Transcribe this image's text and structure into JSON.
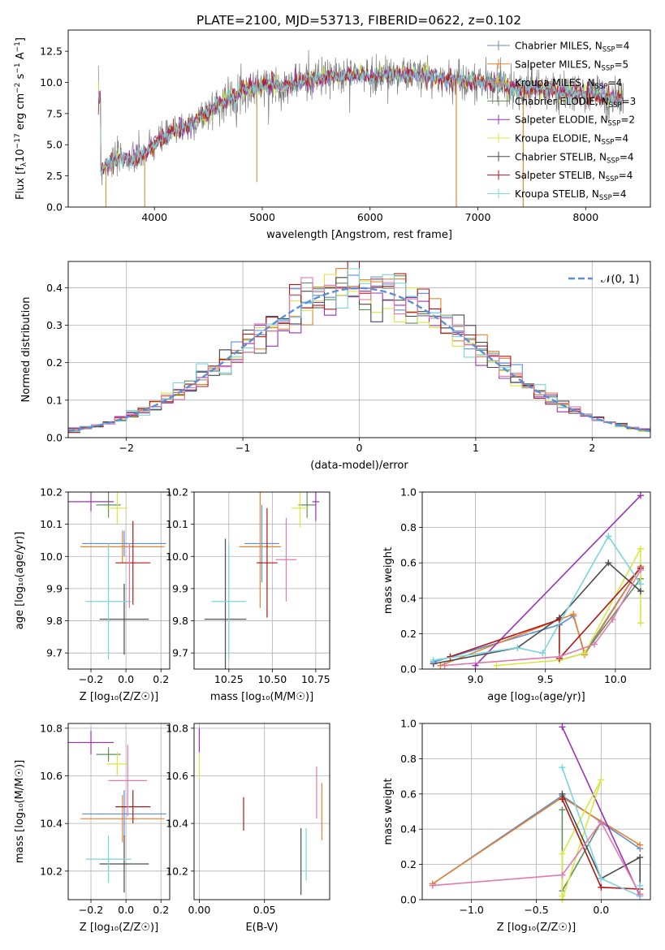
{
  "title": "PLATE=2100, MJD=53713, FIBERID=0622, z=0.102",
  "colors": {
    "Chabrier MILES": "#5a8fd6",
    "Salpeter MILES": "#e8822e",
    "Kroupa MILES": "#e09a3a",
    "Chabrier ELODIE": "#5e8f5e",
    "Salpeter ELODIE": "#9b30b8",
    "Kroupa ELODIE": "#d8e840",
    "Chabrier STELIB": "#4a4a4a",
    "Salpeter STELIB": "#b01818",
    "Kroupa STELIB": "#7ad4dc",
    "pink": "#e07ab0",
    "normal": "#5b8ed6"
  },
  "legend_spectrum": [
    {
      "model": "Chabrier MILES",
      "pre": "Chabrier MILES, N",
      "sub": "SSP",
      "post": "=4"
    },
    {
      "model": "Salpeter MILES",
      "pre": "Salpeter MILES, N",
      "sub": "SSP",
      "post": "=5"
    },
    {
      "model": "Kroupa MILES",
      "pre": "Kroupa MILES, N",
      "sub": "SSP",
      "post": "=4"
    },
    {
      "model": "Chabrier ELODIE",
      "pre": "Chabrier ELODIE, N",
      "sub": "SSP",
      "post": "=3"
    },
    {
      "model": "Salpeter ELODIE",
      "pre": "Salpeter ELODIE, N",
      "sub": "SSP",
      "post": "=2"
    },
    {
      "model": "Kroupa ELODIE",
      "pre": "Kroupa ELODIE, N",
      "sub": "SSP",
      "post": "=4"
    },
    {
      "model": "Chabrier STELIB",
      "pre": "Chabrier STELIB, N",
      "sub": "SSP",
      "post": "=4"
    },
    {
      "model": "Salpeter STELIB",
      "pre": "Salpeter STELIB, N",
      "sub": "SSP",
      "post": "=4"
    },
    {
      "model": "Kroupa STELIB",
      "pre": "Kroupa STELIB, N",
      "sub": "SSP",
      "post": "=4"
    }
  ],
  "chart_data": [
    {
      "id": "spectrum",
      "type": "line",
      "xlabel": "wavelength [Angstrom, rest frame]",
      "ylabel_pre": "Flux [f",
      "ylabel_sub": "λ",
      "ylabel_mid": "10",
      "ylabel_sup1": "−17",
      "ylabel_post": " erg cm",
      "ylabel_sup2": "−2",
      "ylabel_post2": " s",
      "ylabel_sup3": "−1",
      "ylabel_post3": " A",
      "ylabel_sup4": "−1",
      "ylabel_end": "]",
      "xlim": [
        3200,
        8600
      ],
      "ylim": [
        0,
        14.2
      ],
      "xticks": [
        4000,
        5000,
        6000,
        7000,
        8000
      ],
      "yticks": [
        0.0,
        2.5,
        5.0,
        7.5,
        10.0,
        12.5
      ],
      "continuum": [
        [
          3500,
          3.0
        ],
        [
          3600,
          3.6
        ],
        [
          3700,
          4.0
        ],
        [
          3800,
          3.8
        ],
        [
          3900,
          4.2
        ],
        [
          4000,
          5.0
        ],
        [
          4100,
          5.6
        ],
        [
          4200,
          6.2
        ],
        [
          4300,
          6.4
        ],
        [
          4400,
          7.0
        ],
        [
          4500,
          7.7
        ],
        [
          4600,
          8.3
        ],
        [
          4700,
          8.7
        ],
        [
          4800,
          9.2
        ],
        [
          4900,
          9.6
        ],
        [
          5000,
          9.7
        ],
        [
          5100,
          9.9
        ],
        [
          5200,
          9.6
        ],
        [
          5300,
          10.0
        ],
        [
          5400,
          10.2
        ],
        [
          5500,
          10.3
        ],
        [
          5600,
          10.4
        ],
        [
          5700,
          10.5
        ],
        [
          5800,
          10.6
        ],
        [
          5900,
          10.6
        ],
        [
          6000,
          10.5
        ],
        [
          6100,
          10.6
        ],
        [
          6200,
          10.7
        ],
        [
          6300,
          10.6
        ],
        [
          6400,
          10.7
        ],
        [
          6500,
          10.6
        ],
        [
          6600,
          10.4
        ],
        [
          6700,
          10.2
        ],
        [
          6800,
          10.2
        ],
        [
          6900,
          10.1
        ],
        [
          7000,
          10.0
        ],
        [
          7100,
          10.0
        ],
        [
          7200,
          9.9
        ],
        [
          7300,
          9.6
        ],
        [
          7400,
          9.5
        ],
        [
          7500,
          9.5
        ],
        [
          7600,
          9.5
        ],
        [
          7700,
          9.3
        ],
        [
          7800,
          9.1
        ],
        [
          7900,
          9.2
        ],
        [
          8000,
          9.0
        ],
        [
          8100,
          9.0
        ],
        [
          8200,
          8.9
        ],
        [
          8300,
          8.8
        ]
      ],
      "spikes_down": [
        [
          4950,
          2.0
        ],
        [
          6800,
          0.0
        ],
        [
          7420,
          0.0
        ],
        [
          3550,
          0.0
        ],
        [
          3910,
          0.0
        ]
      ]
    },
    {
      "id": "residual-hist",
      "type": "step",
      "xlabel": "(data-model)/error",
      "ylabel": "Normed distribution",
      "xlim": [
        -2.5,
        2.5
      ],
      "ylim": [
        0,
        0.47
      ],
      "xticks": [
        -2,
        -1,
        0,
        1,
        2
      ],
      "xtick_labels": [
        "−2",
        "−1",
        "0",
        "1",
        "2"
      ],
      "yticks": [
        0.0,
        0.1,
        0.2,
        0.3,
        0.4
      ],
      "legend": "𝒩(0, 1)",
      "bin_width": 0.1
    },
    {
      "id": "age-vs-Z",
      "type": "errorbar",
      "xlabel": "Z [log₁₀(Z/Z☉)]",
      "ylabel": "age  [log₁₀(age/yr)]",
      "xlim": [
        -0.33,
        0.25
      ],
      "ylim": [
        9.65,
        10.2
      ],
      "xticks": [
        -0.2,
        0.0,
        0.2
      ],
      "xtick_labels": [
        "−0.2",
        "0.0",
        "0.2"
      ],
      "yticks": [
        9.7,
        9.8,
        9.9,
        10.0,
        10.1,
        10.2
      ],
      "ytick_labels": [
        "9.7",
        "9.8",
        "9.9",
        "10.0",
        "10.1",
        "10.2"
      ],
      "points": [
        {
          "m": "Chabrier MILES",
          "x": -0.01,
          "y": 10.04,
          "xe": 0.24,
          "ye": 0.04
        },
        {
          "m": "Salpeter MILES",
          "x": -0.02,
          "y": 10.03,
          "xe": 0.24,
          "ye": 0.05
        },
        {
          "m": "Chabrier ELODIE",
          "x": -0.1,
          "y": 10.16,
          "xe": 0.07,
          "ye": 0.04
        },
        {
          "m": "Salpeter ELODIE",
          "x": -0.2,
          "y": 10.17,
          "xe": 0.13,
          "ye": 0.03
        },
        {
          "m": "Kroupa ELODIE",
          "x": -0.05,
          "y": 10.15,
          "xe": 0.06,
          "ye": 0.05
        },
        {
          "m": "Chabrier STELIB",
          "x": -0.01,
          "y": 9.805,
          "xe": 0.14,
          "ye": 0.11
        },
        {
          "m": "Salpeter STELIB",
          "x": 0.04,
          "y": 9.98,
          "xe": 0.1,
          "ye": 0.13
        },
        {
          "m": "Kroupa STELIB",
          "x": -0.1,
          "y": 9.86,
          "xe": 0.13,
          "ye": 0.18
        },
        {
          "m": "pink",
          "x": 0.02,
          "y": 9.94,
          "xe": 0.0,
          "ye": 0.1
        }
      ]
    },
    {
      "id": "age-vs-mass",
      "type": "errorbar",
      "xlabel": "mass [log₁₀(M/M☉)]",
      "xlim": [
        10.05,
        10.83
      ],
      "ylim": [
        9.65,
        10.2
      ],
      "xticks": [
        10.25,
        10.5,
        10.75
      ],
      "xtick_labels": [
        "10.25",
        "10.50",
        "10.75"
      ],
      "yticks": [
        9.7,
        9.8,
        9.9,
        10.0,
        10.1,
        10.2
      ],
      "ytick_labels": [
        "9.7",
        "9.8",
        "9.9",
        "10.0",
        "10.1",
        "10.2"
      ],
      "points": [
        {
          "m": "Chabrier MILES",
          "x": 10.44,
          "y": 10.04,
          "xe": 0.1,
          "ye": 0.12
        },
        {
          "m": "Salpeter MILES",
          "x": 10.43,
          "y": 10.03,
          "xe": 0.12,
          "ye": 0.19
        },
        {
          "m": "Chabrier ELODIE",
          "x": 10.7,
          "y": 10.16,
          "xe": 0.05,
          "ye": 0.04
        },
        {
          "m": "Salpeter ELODIE",
          "x": 10.75,
          "y": 10.17,
          "xe": 0.02,
          "ye": 0.06
        },
        {
          "m": "Kroupa ELODIE",
          "x": 10.66,
          "y": 10.15,
          "xe": 0.05,
          "ye": 0.06
        },
        {
          "m": "Chabrier STELIB",
          "x": 10.23,
          "y": 9.805,
          "xe": 0.12,
          "ye": 0.25
        },
        {
          "m": "Salpeter STELIB",
          "x": 10.47,
          "y": 9.98,
          "xe": 0.06,
          "ye": 0.17
        },
        {
          "m": "Kroupa STELIB",
          "x": 10.25,
          "y": 9.86,
          "xe": 0.1,
          "ye": 0.18
        },
        {
          "m": "pink",
          "x": 10.58,
          "y": 9.99,
          "xe": 0.06,
          "ye": 0.13
        }
      ]
    },
    {
      "id": "weight-vs-age",
      "type": "line",
      "xlabel": "age  [log₁₀(age/yr)]",
      "ylabel": "mass weight",
      "xlim": [
        8.62,
        10.25
      ],
      "ylim": [
        0,
        1.0
      ],
      "xticks": [
        9.0,
        9.5,
        10.0
      ],
      "xtick_labels": [
        "9.0",
        "9.5",
        "10.0"
      ],
      "yticks": [
        0.0,
        0.2,
        0.4,
        0.6,
        0.8,
        1.0
      ],
      "series": [
        {
          "m": "Chabrier MILES",
          "pts": [
            [
              8.7,
              0.04
            ],
            [
              9.6,
              0.25
            ],
            [
              9.7,
              0.3
            ],
            [
              9.78,
              0.09
            ],
            [
              10.18,
              0.58
            ]
          ]
        },
        {
          "m": "Salpeter MILES",
          "pts": [
            [
              8.75,
              0.02
            ],
            [
              9.6,
              0.28
            ],
            [
              9.7,
              0.31
            ],
            [
              9.78,
              0.08
            ],
            [
              10.18,
              0.58
            ]
          ]
        },
        {
          "m": "Chabrier ELODIE",
          "pts": [
            [
              9.6,
              0.05
            ],
            [
              9.78,
              0.09
            ],
            [
              10.18,
              0.51
            ]
          ]
        },
        {
          "m": "Salpeter ELODIE",
          "pts": [
            [
              9.0,
              0.02
            ],
            [
              10.18,
              0.98
            ]
          ]
        },
        {
          "m": "Kroupa ELODIE",
          "pts": [
            [
              9.15,
              0.02
            ],
            [
              9.6,
              0.05
            ],
            [
              9.78,
              0.09
            ],
            [
              10.18,
              0.68
            ],
            [
              10.18,
              0.26
            ]
          ]
        },
        {
          "m": "Chabrier STELIB",
          "pts": [
            [
              8.7,
              0.03
            ],
            [
              9.3,
              0.12
            ],
            [
              9.6,
              0.29
            ],
            [
              9.95,
              0.6
            ],
            [
              10.18,
              0.44
            ]
          ]
        },
        {
          "m": "Salpeter STELIB",
          "pts": [
            [
              8.82,
              0.07
            ],
            [
              9.6,
              0.28
            ],
            [
              9.6,
              0.06
            ],
            [
              10.18,
              0.57
            ]
          ]
        },
        {
          "m": "Kroupa STELIB",
          "pts": [
            [
              8.7,
              0.05
            ],
            [
              9.3,
              0.12
            ],
            [
              9.48,
              0.09
            ],
            [
              9.95,
              0.75
            ],
            [
              10.18,
              0.48
            ]
          ]
        },
        {
          "m": "pink",
          "pts": [
            [
              8.78,
              0.02
            ],
            [
              9.6,
              0.07
            ],
            [
              9.85,
              0.14
            ],
            [
              9.98,
              0.28
            ],
            [
              10.18,
              0.56
            ]
          ]
        }
      ]
    },
    {
      "id": "mass-vs-Z",
      "type": "errorbar",
      "xlabel": "Z [log₁₀(Z/Z☉)]",
      "ylabel": "mass [log₁₀(M/M☉)]",
      "xlim": [
        -0.33,
        0.25
      ],
      "ylim": [
        10.08,
        10.82
      ],
      "xticks": [
        -0.2,
        0.0,
        0.2
      ],
      "xtick_labels": [
        "−0.2",
        "0.0",
        "0.2"
      ],
      "yticks": [
        10.2,
        10.4,
        10.6,
        10.8
      ],
      "ytick_labels": [
        "10.2",
        "10.4",
        "10.6",
        "10.8"
      ],
      "points": [
        {
          "m": "Chabrier MILES",
          "x": -0.01,
          "y": 10.44,
          "xe": 0.24,
          "ye": 0.1
        },
        {
          "m": "Salpeter MILES",
          "x": -0.02,
          "y": 10.42,
          "xe": 0.24,
          "ye": 0.1
        },
        {
          "m": "Chabrier ELODIE",
          "x": -0.1,
          "y": 10.69,
          "xe": 0.07,
          "ye": 0.03
        },
        {
          "m": "Salpeter ELODIE",
          "x": -0.2,
          "y": 10.74,
          "xe": 0.13,
          "ye": 0.05
        },
        {
          "m": "Kroupa ELODIE",
          "x": -0.05,
          "y": 10.65,
          "xe": 0.06,
          "ye": 0.05
        },
        {
          "m": "Chabrier STELIB",
          "x": -0.01,
          "y": 10.23,
          "xe": 0.14,
          "ye": 0.12
        },
        {
          "m": "Salpeter STELIB",
          "x": 0.04,
          "y": 10.47,
          "xe": 0.1,
          "ye": 0.07
        },
        {
          "m": "Kroupa STELIB",
          "x": -0.1,
          "y": 10.25,
          "xe": 0.13,
          "ye": 0.1
        },
        {
          "m": "pink",
          "x": 0.01,
          "y": 10.58,
          "xe": 0.11,
          "ye": 0.15
        }
      ]
    },
    {
      "id": "mass-vs-ebv",
      "type": "errorbar",
      "xlabel": "E(B-V)",
      "xlim": [
        -0.004,
        0.1
      ],
      "ylim": [
        10.08,
        10.82
      ],
      "xticks": [
        0.0,
        0.05
      ],
      "xtick_labels": [
        "0.00",
        "0.05"
      ],
      "yticks": [
        10.2,
        10.4,
        10.6,
        10.8
      ],
      "ytick_labels": [
        "10.2",
        "10.4",
        "10.6",
        "10.8"
      ],
      "points": [
        {
          "m": "Salpeter ELODIE",
          "x": 0.0,
          "y": 10.75,
          "xe": 0,
          "ye": 0.05
        },
        {
          "m": "Kroupa ELODIE",
          "x": 0.0,
          "y": 10.64,
          "xe": 0,
          "ye": 0.05
        },
        {
          "m": "Salpeter STELIB",
          "x": 0.034,
          "y": 10.44,
          "xe": 0,
          "ye": 0.07
        },
        {
          "m": "Chabrier STELIB",
          "x": 0.078,
          "y": 10.24,
          "xe": 0,
          "ye": 0.14
        },
        {
          "m": "Kroupa STELIB",
          "x": 0.082,
          "y": 10.27,
          "xe": 0,
          "ye": 0.11
        },
        {
          "m": "pink",
          "x": 0.09,
          "y": 10.53,
          "xe": 0,
          "ye": 0.11
        },
        {
          "m": "Salpeter MILES",
          "x": 0.094,
          "y": 10.45,
          "xe": 0,
          "ye": 0.12
        }
      ]
    },
    {
      "id": "weight-vs-Z",
      "type": "line",
      "xlabel": "Z [log₁₀(Z/Z☉)]",
      "ylabel": "mass weight",
      "xlim": [
        -1.38,
        0.38
      ],
      "ylim": [
        0,
        1.0
      ],
      "xticks": [
        -1.0,
        -0.5,
        0.0
      ],
      "xtick_labels": [
        "−1.0",
        "−0.5",
        "0.0"
      ],
      "yticks": [
        0.0,
        0.2,
        0.4,
        0.6,
        0.8,
        1.0
      ],
      "series": [
        {
          "m": "Chabrier MILES",
          "pts": [
            [
              -1.3,
              0.09
            ],
            [
              -0.3,
              0.59
            ],
            [
              0.3,
              0.29
            ]
          ]
        },
        {
          "m": "Salpeter MILES",
          "pts": [
            [
              -1.3,
              0.09
            ],
            [
              -0.3,
              0.58
            ],
            [
              0.3,
              0.31
            ]
          ]
        },
        {
          "m": "Chabrier ELODIE",
          "pts": [
            [
              -0.3,
              0.51
            ],
            [
              -0.3,
              0.05
            ],
            [
              0.0,
              0.44
            ]
          ]
        },
        {
          "m": "Salpeter ELODIE",
          "pts": [
            [
              -0.3,
              0.98
            ],
            [
              0.3,
              0.02
            ]
          ]
        },
        {
          "m": "Kroupa ELODIE",
          "pts": [
            [
              -0.3,
              0.02
            ],
            [
              -0.3,
              0.26
            ],
            [
              0.0,
              0.68
            ],
            [
              -0.3,
              0.0
            ]
          ]
        },
        {
          "m": "Chabrier STELIB",
          "pts": [
            [
              -0.3,
              0.6
            ],
            [
              0.0,
              0.12
            ],
            [
              0.3,
              0.24
            ],
            [
              0.3,
              0.03
            ]
          ]
        },
        {
          "m": "Salpeter STELIB",
          "pts": [
            [
              -0.3,
              0.57
            ],
            [
              0.0,
              0.07
            ],
            [
              0.3,
              0.06
            ],
            [
              0.3,
              0.06
            ]
          ]
        },
        {
          "m": "Kroupa STELIB",
          "pts": [
            [
              -0.3,
              0.75
            ],
            [
              0.0,
              0.12
            ],
            [
              0.3,
              0.02
            ],
            [
              0.3,
              0.08
            ]
          ]
        },
        {
          "m": "pink",
          "pts": [
            [
              -1.3,
              0.08
            ],
            [
              -0.3,
              0.14
            ],
            [
              0.0,
              0.44
            ],
            [
              0.3,
              0.03
            ]
          ]
        }
      ]
    }
  ]
}
